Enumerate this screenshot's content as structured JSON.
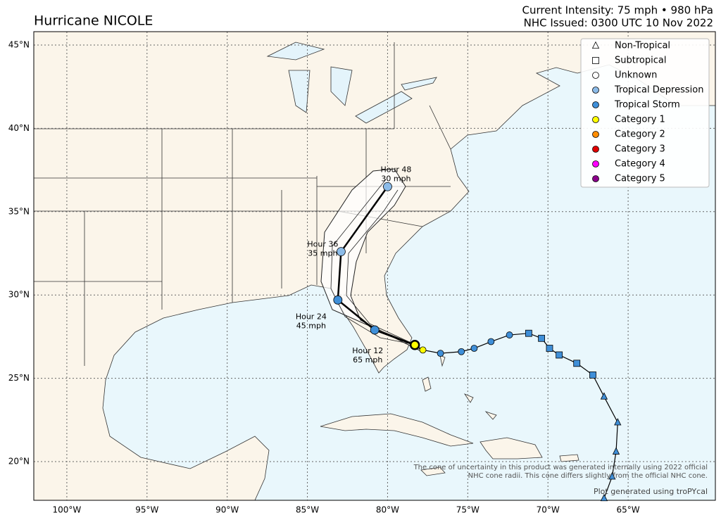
{
  "header": {
    "title": "Hurricane NICOLE",
    "intensity": "Current Intensity: 75 mph • 980 hPa",
    "issued": "NHC Issued: 0300 UTC 10 Nov 2022"
  },
  "map": {
    "xlim": [
      -102.06,
      -59.56
    ],
    "ylim": [
      17.68,
      45.8
    ],
    "xticks": [
      {
        "value": -100,
        "label": "100°W"
      },
      {
        "value": -95,
        "label": "95°W"
      },
      {
        "value": -90,
        "label": "90°W"
      },
      {
        "value": -85,
        "label": "85°W"
      },
      {
        "value": -80,
        "label": "80°W"
      },
      {
        "value": -75,
        "label": "75°W"
      },
      {
        "value": -70,
        "label": "70°W"
      },
      {
        "value": -65,
        "label": "65°W"
      }
    ],
    "yticks": [
      {
        "value": 20,
        "label": "20°N"
      },
      {
        "value": 25,
        "label": "25°N"
      },
      {
        "value": 30,
        "label": "30°N"
      },
      {
        "value": 35,
        "label": "35°N"
      },
      {
        "value": 40,
        "label": "40°N"
      },
      {
        "value": 45,
        "label": "45°N"
      }
    ],
    "track": {
      "lon": [
        -66.5,
        -66.0,
        -65.75,
        -65.65,
        -66.5,
        -67.2,
        -68.2,
        -69.3,
        -69.9,
        -70.4,
        -71.2,
        -72.4,
        -73.55,
        -74.6,
        -75.4,
        -76.7,
        -77.8,
        -78.3
      ],
      "lat": [
        17.8,
        19.1,
        20.6,
        22.35,
        23.9,
        25.2,
        25.9,
        26.4,
        26.8,
        27.4,
        27.7,
        27.6,
        27.2,
        26.8,
        26.6,
        26.5,
        26.7,
        27.0
      ],
      "shape": [
        "triangle",
        "triangle",
        "triangle",
        "triangle",
        "triangle",
        "square",
        "square",
        "square",
        "square",
        "square",
        "square",
        "circle",
        "circle",
        "circle",
        "circle",
        "circle",
        "circle",
        "circle"
      ],
      "fill": [
        "#3f8fd8",
        "#3f8fd8",
        "#3f8fd8",
        "#3f8fd8",
        "#3f8fd8",
        "#3f8fd8",
        "#3f8fd8",
        "#3f8fd8",
        "#3f8fd8",
        "#3f8fd8",
        "#3f8fd8",
        "#3f8fd8",
        "#3f8fd8",
        "#3f8fd8",
        "#3f8fd8",
        "#3f8fd8",
        "#ffff00",
        "#ffff00"
      ]
    },
    "forecast": {
      "lon": [
        -80.8,
        -83.1,
        -82.9,
        -80.0
      ],
      "lat": [
        27.9,
        29.7,
        32.6,
        36.5
      ],
      "fill": [
        "#3f8fd8",
        "#3f8fd8",
        "#8bbbe8",
        "#8bbbe8"
      ],
      "hour_labels": [
        "Hour 12",
        "Hour 24",
        "Hour 36",
        "Hour 48"
      ],
      "wind_labels": [
        "65 mph",
        "45 mph",
        "35 mph",
        "30 mph"
      ]
    },
    "legend": [
      {
        "name": "Non-Tropical",
        "shape": "triangle",
        "color": "#ffffff"
      },
      {
        "name": "Subtropical",
        "shape": "square",
        "color": "#ffffff"
      },
      {
        "name": "Unknown",
        "shape": "circle",
        "color": "#ffffff"
      },
      {
        "name": "Tropical Depression",
        "shape": "circle",
        "color": "#8bbbe8"
      },
      {
        "name": "Tropical Storm",
        "shape": "circle",
        "color": "#3f8fd8"
      },
      {
        "name": "Category 1",
        "shape": "circle",
        "color": "#ffff00"
      },
      {
        "name": "Category 2",
        "shape": "circle",
        "color": "#ff8c00"
      },
      {
        "name": "Category 3",
        "shape": "circle",
        "color": "#e00000"
      },
      {
        "name": "Category 4",
        "shape": "circle",
        "color": "#ff00ff"
      },
      {
        "name": "Category 5",
        "shape": "circle",
        "color": "#8b008b"
      }
    ],
    "notes": [
      "The cone of uncertainty in this product was generated internally using 2022 official",
      "NHC cone radii. This cone differs slightly from the official NHC cone."
    ],
    "credit": "Plot generated using troPYcal"
  }
}
